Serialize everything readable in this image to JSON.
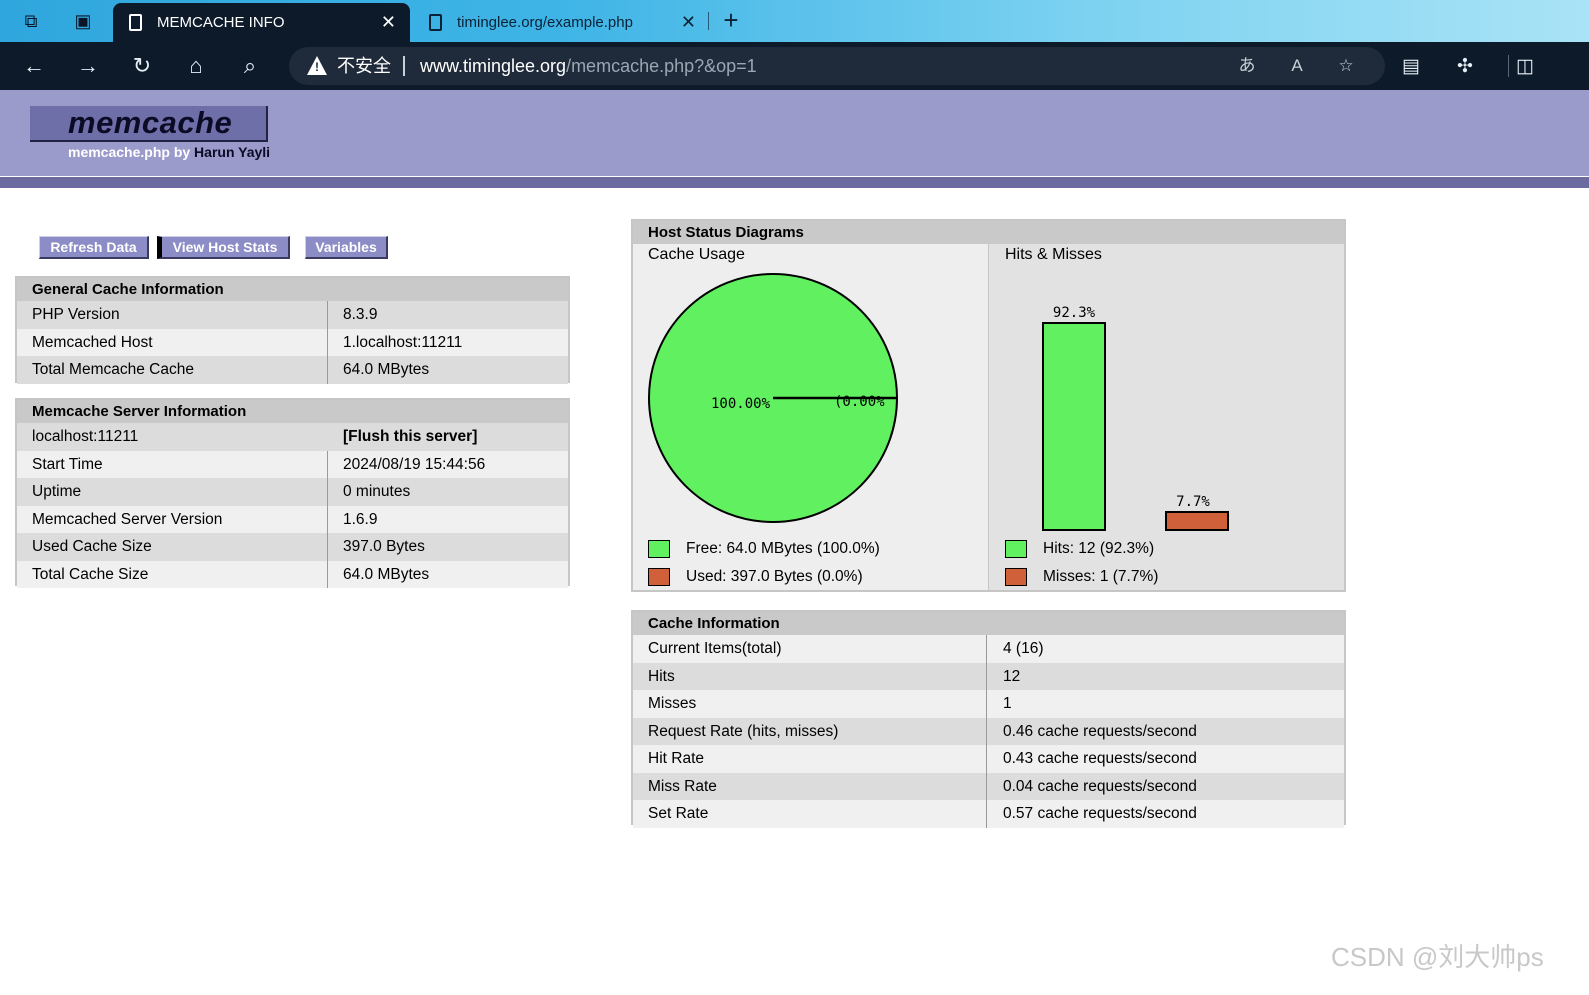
{
  "browser": {
    "tabs": [
      {
        "label": "MEMCACHE INFO",
        "close": "✕"
      },
      {
        "label": "timinglee.org/example.php",
        "close": "✕"
      }
    ],
    "new_tab": "+",
    "address": {
      "security_label": "不安全",
      "url_host": "www.timinglee.org",
      "url_path": "/memcache.php?&op=1"
    }
  },
  "header": {
    "logo": "memcache",
    "subtitle_prefix": "memcache.php by",
    "author": "Harun Yayli"
  },
  "menu": {
    "refresh": "Refresh Data",
    "host_stats": "View Host Stats",
    "variables": "Variables"
  },
  "general": {
    "title": "General Cache Information",
    "rows": [
      {
        "k": "PHP Version",
        "v": "8.3.9"
      },
      {
        "k": "Memcached Host",
        "v": "1.localhost:11211"
      },
      {
        "k": "Total Memcache Cache",
        "v": "64.0 MBytes"
      }
    ]
  },
  "server": {
    "title": "Memcache Server Information",
    "host": "localhost:11211",
    "flush": "[Flush this server]",
    "rows": [
      {
        "k": "Start Time",
        "v": "2024/08/19 15:44:56"
      },
      {
        "k": "Uptime",
        "v": "0 minutes"
      },
      {
        "k": "Memcached Server Version",
        "v": "1.6.9"
      },
      {
        "k": "Used Cache Size",
        "v": "397.0 Bytes"
      },
      {
        "k": "Total Cache Size",
        "v": "64.0 MBytes"
      }
    ]
  },
  "diagrams": {
    "title": "Host Status Diagrams",
    "cache_usage": {
      "label": "Cache Usage",
      "free_pct_label": "100.00%",
      "used_pct_label": "(0.00%",
      "legend_free": "Free: 64.0 MBytes (100.0%)",
      "legend_used": "Used: 397.0 Bytes (0.0%)"
    },
    "hits_misses": {
      "label": "Hits & Misses",
      "hits_pct_label": "92.3%",
      "misses_pct_label": "7.7%",
      "legend_hits": "Hits: 12 (92.3%)",
      "legend_misses": "Misses: 1 (7.7%)"
    }
  },
  "chart_data": [
    {
      "type": "pie",
      "title": "Cache Usage",
      "categories": [
        "Free",
        "Used"
      ],
      "values": [
        100.0,
        0.0
      ],
      "unit": "%"
    },
    {
      "type": "bar",
      "title": "Hits & Misses",
      "categories": [
        "Hits",
        "Misses"
      ],
      "values": [
        92.3,
        7.7
      ],
      "unit": "%"
    }
  ],
  "colors": {
    "free": "#60f060",
    "used": "#d0603a",
    "header": "#9a9acb",
    "header_line": "#6b6ba0"
  },
  "cache_info": {
    "title": "Cache Information",
    "rows": [
      {
        "k": "Current Items(total)",
        "v": "4 (16)"
      },
      {
        "k": "Hits",
        "v": "12"
      },
      {
        "k": "Misses",
        "v": "1"
      },
      {
        "k": "Request Rate (hits, misses)",
        "v": "0.46 cache requests/second"
      },
      {
        "k": "Hit Rate",
        "v": "0.43 cache requests/second"
      },
      {
        "k": "Miss Rate",
        "v": "0.04 cache requests/second"
      },
      {
        "k": "Set Rate",
        "v": "0.57 cache requests/second"
      }
    ]
  },
  "watermark": "CSDN @刘大帅ps"
}
